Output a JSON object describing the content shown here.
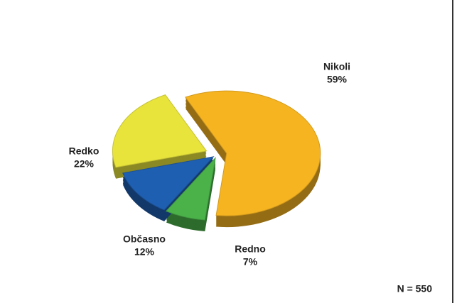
{
  "chart_data": {
    "type": "pie",
    "categories": [
      "Nikoli",
      "Redno",
      "Občasno",
      "Redko"
    ],
    "values": [
      59,
      7,
      12,
      22
    ],
    "value_labels": [
      "59%",
      "7%",
      "12%",
      "22%"
    ],
    "colors": [
      "#f6b421",
      "#4bb24a",
      "#1f5fb1",
      "#e8e43c"
    ],
    "annotation": "N = 550"
  }
}
